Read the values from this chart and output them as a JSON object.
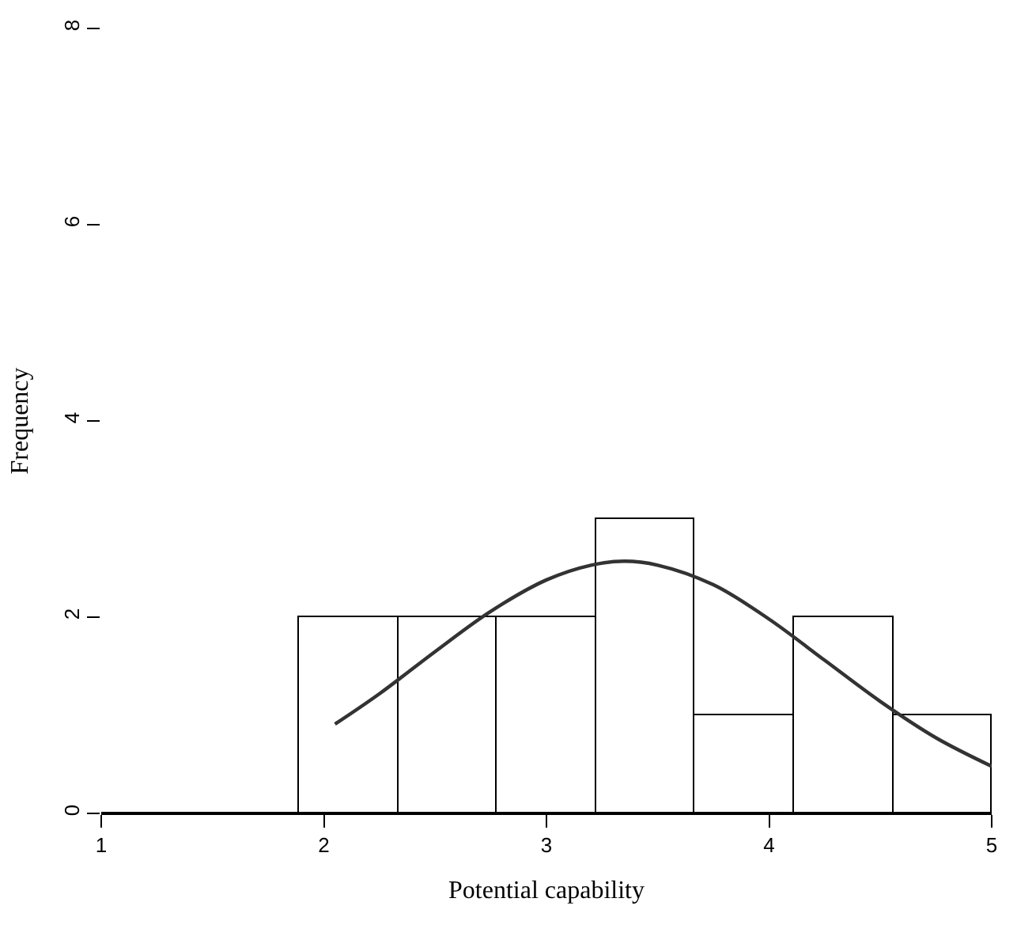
{
  "chart_data": {
    "type": "histogram",
    "xlabel": "Potential capability",
    "ylabel": "Frequency",
    "bins": [
      1,
      1.444,
      1.889,
      2.333,
      2.778,
      3.222,
      3.667,
      4.111,
      4.556,
      5
    ],
    "values": [
      0,
      0,
      2,
      2,
      2,
      3,
      1,
      2,
      1
    ],
    "color": "#ffffff",
    "series": [
      {
        "type": "line",
        "color": "#333333",
        "x": [
          2.05,
          2.25,
          2.5,
          2.75,
          3.0,
          3.2,
          3.35,
          3.5,
          3.75,
          4.0,
          4.25,
          4.5,
          4.75,
          5.0
        ],
        "values": [
          0.91,
          1.22,
          1.65,
          2.06,
          2.38,
          2.53,
          2.57,
          2.53,
          2.33,
          1.98,
          1.56,
          1.14,
          0.77,
          0.48
        ]
      }
    ],
    "xlim": [
      1,
      5
    ],
    "ylim": [
      0,
      8
    ],
    "xticks": [
      1,
      2,
      3,
      4,
      5
    ],
    "yticks": [
      0,
      2,
      4,
      6,
      8
    ]
  }
}
